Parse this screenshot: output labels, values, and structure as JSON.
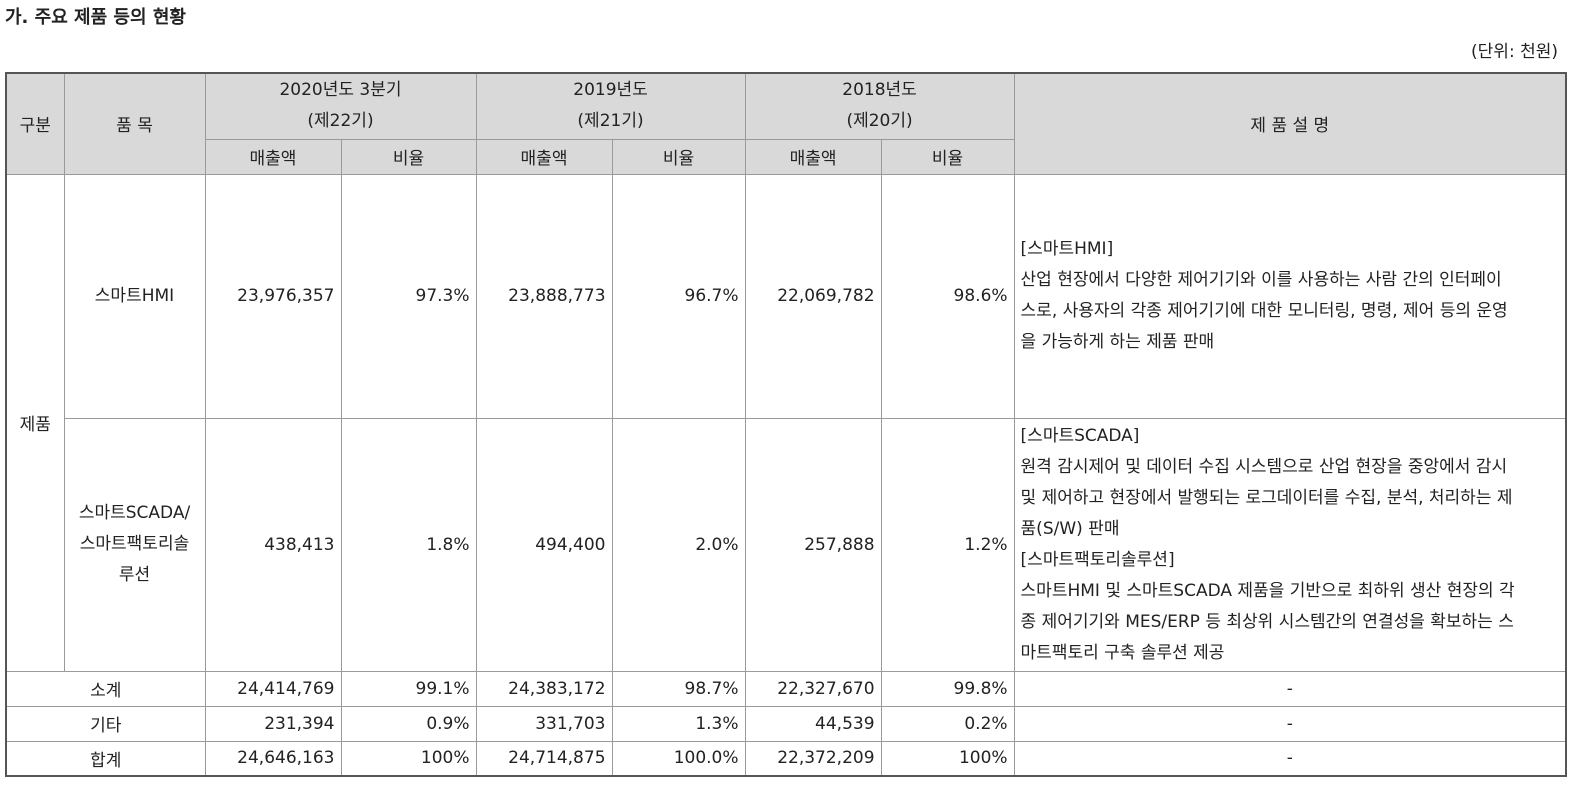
{
  "title": "가. 주요 제품 등의 현황",
  "unit": "(단위: 천원)",
  "table": {
    "header": {
      "category": "구분",
      "item": "품 목",
      "periods": [
        {
          "name": "2020년도 3분기",
          "term": "(제22기)",
          "sales": "매출액",
          "ratio": "비율"
        },
        {
          "name": "2019년도",
          "term": "(제21기)",
          "sales": "매출액",
          "ratio": "비율"
        },
        {
          "name": "2018년도",
          "term": "(제20기)",
          "sales": "매출액",
          "ratio": "비율"
        }
      ],
      "description": "제 품 설 명"
    },
    "group": "제품",
    "product_rows": [
      {
        "item": [
          "스마트HMI"
        ],
        "values": [
          "23,976,357",
          "97.3%",
          "23,888,773",
          "96.7%",
          "22,069,782",
          "98.6%"
        ],
        "description": [
          "[스마트HMI]",
          "산업 현장에서 다양한 제어기기와 이를 사용하는 사람 간의 인터페이",
          "스로, 사용자의 각종 제어기기에 대한 모니터링, 명령, 제어 등의 운영",
          "을 가능하게 하는 제품 판매"
        ]
      },
      {
        "item": [
          "스마트SCADA/",
          "스마트팩토리솔",
          "루션"
        ],
        "values": [
          "438,413",
          "1.8%",
          "494,400",
          "2.0%",
          "257,888",
          "1.2%"
        ],
        "description": [
          "[스마트SCADA]",
          "원격 감시제어 및 데이터 수집 시스템으로 산업 현장을 중앙에서 감시",
          "및 제어하고 현장에서 발행되는 로그데이터를 수집, 분석, 처리하는 제",
          "품(S/W) 판매",
          "[스마트팩토리솔루션]",
          "스마트HMI 및 스마트SCADA 제품을 기반으로 최하위 생산 현장의 각",
          "종 제어기기와 MES/ERP 등 최상위 시스템간의 연결성을 확보하는 스",
          "마트팩토리 구축 솔루션 제공"
        ]
      }
    ],
    "summary_rows": [
      {
        "label": "소계",
        "values": [
          "24,414,769",
          "99.1%",
          "24,383,172",
          "98.7%",
          "22,327,670",
          "99.8%"
        ],
        "description": "-"
      },
      {
        "label": "기타",
        "values": [
          "231,394",
          "0.9%",
          "331,703",
          "1.3%",
          "44,539",
          "0.2%"
        ],
        "description": "-"
      },
      {
        "label": "합계",
        "values": [
          "24,646,163",
          "100%",
          "24,714,875",
          "100.0%",
          "22,372,209",
          "100%"
        ],
        "description": "-"
      }
    ]
  }
}
